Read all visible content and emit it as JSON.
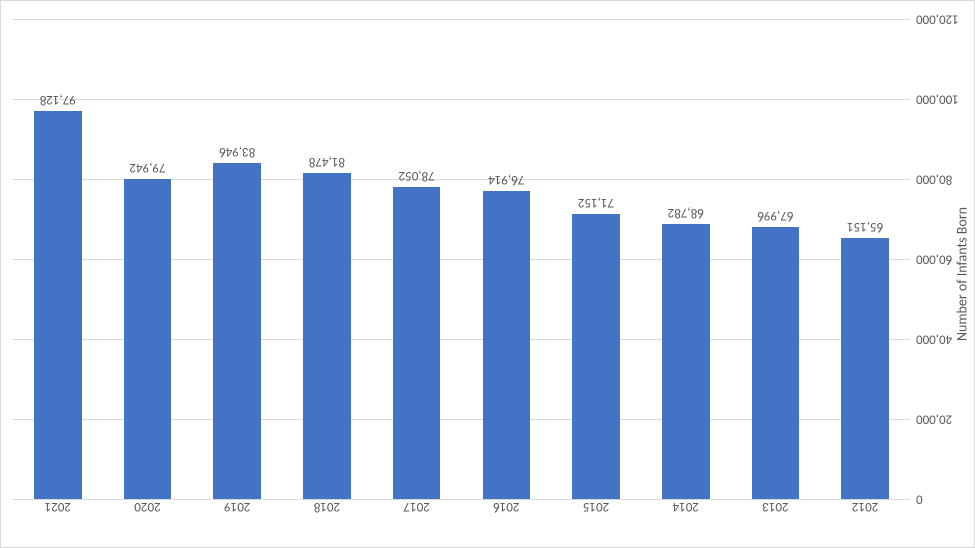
{
  "chart": {
    "type": "bar",
    "categories": [
      "2012",
      "2013",
      "2014",
      "2015",
      "2016",
      "2017",
      "2018",
      "2019",
      "2020",
      "2021"
    ],
    "values": [
      65151,
      67996,
      68782,
      71152,
      76914,
      78052,
      81478,
      83946,
      79942,
      97128
    ],
    "value_labels": [
      "65,151",
      "67,996",
      "68,782",
      "71,152",
      "76,914",
      "78,052",
      "81,478",
      "83,946",
      "79,942",
      "97,128"
    ],
    "bar_color": "#4472c4",
    "y_axis_title": "Number of Infants Born",
    "ylim": [
      0,
      120000
    ],
    "ytick_values": [
      0,
      20000,
      40000,
      60000,
      80000,
      100000,
      120000
    ],
    "ytick_labels": [
      "0",
      "20,000",
      "40,000",
      "60,000",
      "80,000",
      "100,000",
      "120,000"
    ],
    "background_color": "#ffffff",
    "grid_color": "#d9d9d9",
    "text_color": "#595959",
    "bar_width": 0.53,
    "label_fontsize": 13,
    "axis_title_fontsize": 14,
    "mirrored": true
  }
}
